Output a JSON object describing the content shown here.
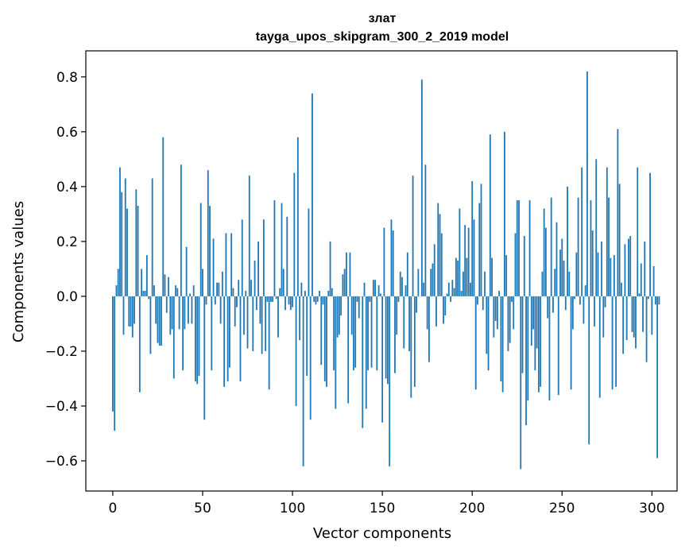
{
  "chart_data": {
    "type": "bar",
    "title": "злат",
    "subtitle": "tayga_upos_skipgram_300_2_2019 model",
    "xlabel": "Vector components",
    "ylabel": "Components values",
    "xlim": [
      -15,
      314
    ],
    "ylim": [
      -0.71,
      0.895
    ],
    "xticks": [
      0,
      50,
      100,
      150,
      200,
      250,
      300
    ],
    "xtick_labels": [
      "0",
      "50",
      "100",
      "150",
      "200",
      "250",
      "300"
    ],
    "yticks": [
      -0.6,
      -0.4,
      -0.2,
      0.0,
      0.2,
      0.4,
      0.6,
      0.8
    ],
    "ytick_labels": [
      "−0.6",
      "−0.4",
      "−0.2",
      "0.0",
      "0.2",
      "0.4",
      "0.6",
      "0.8"
    ],
    "grid": false,
    "bar_color": "#1f77b4",
    "x_start": 0,
    "values": [
      -0.42,
      -0.49,
      0.04,
      0.1,
      0.47,
      0.38,
      -0.14,
      0.43,
      0.32,
      -0.11,
      -0.11,
      -0.15,
      -0.1,
      0.39,
      0.33,
      -0.35,
      0.1,
      0.02,
      0.02,
      0.15,
      -0.01,
      -0.21,
      0.43,
      0.04,
      -0.1,
      -0.17,
      -0.18,
      -0.18,
      0.58,
      0.08,
      -0.06,
      0.07,
      -0.14,
      -0.12,
      -0.3,
      0.04,
      0.03,
      -0.12,
      0.48,
      -0.27,
      -0.12,
      0.18,
      -0.1,
      0.01,
      -0.1,
      0.04,
      -0.31,
      -0.32,
      -0.29,
      0.34,
      0.1,
      -0.45,
      -0.03,
      0.46,
      0.33,
      -0.27,
      0.21,
      -0.03,
      0.05,
      0.05,
      -0.1,
      0.09,
      -0.33,
      0.23,
      -0.31,
      -0.26,
      0.23,
      0.03,
      -0.11,
      -0.04,
      0.06,
      -0.31,
      0.28,
      -0.14,
      0.02,
      -0.19,
      0.44,
      0.06,
      -0.2,
      0.13,
      -0.05,
      0.2,
      -0.1,
      -0.21,
      0.28,
      -0.2,
      -0.02,
      -0.34,
      -0.02,
      -0.02,
      0.35,
      -0.01,
      -0.15,
      0.03,
      0.34,
      0.1,
      -0.05,
      0.29,
      -0.03,
      -0.05,
      -0.04,
      0.45,
      -0.4,
      0.58,
      -0.16,
      0.05,
      -0.62,
      0.02,
      -0.29,
      0.32,
      -0.45,
      0.74,
      -0.02,
      -0.03,
      -0.02,
      0.02,
      -0.25,
      -0.03,
      -0.31,
      -0.33,
      0.02,
      0.2,
      0.03,
      -0.27,
      -0.41,
      -0.15,
      -0.14,
      -0.07,
      0.08,
      0.1,
      0.16,
      -0.39,
      0.16,
      -0.14,
      -0.27,
      -0.26,
      -0.02,
      -0.08,
      0.0,
      -0.48,
      0.05,
      -0.41,
      -0.27,
      -0.02,
      -0.26,
      0.06,
      0.06,
      -0.27,
      0.04,
      0.01,
      -0.46,
      0.25,
      -0.3,
      -0.32,
      -0.62,
      0.28,
      0.24,
      -0.28,
      -0.14,
      -0.02,
      0.09,
      0.07,
      -0.19,
      0.04,
      0.16,
      -0.2,
      -0.37,
      0.44,
      -0.33,
      -0.06,
      0.1,
      0.0,
      0.79,
      0.05,
      0.48,
      -0.12,
      -0.24,
      0.1,
      0.12,
      0.19,
      -0.11,
      0.34,
      0.3,
      0.23,
      -0.1,
      -0.07,
      0.01,
      0.05,
      -0.02,
      0.06,
      0.03,
      0.14,
      0.13,
      0.32,
      0.02,
      0.09,
      0.26,
      0.14,
      0.25,
      0.05,
      0.42,
      0.28,
      -0.34,
      -0.03,
      0.34,
      0.41,
      -0.05,
      0.09,
      -0.21,
      -0.27,
      0.59,
      0.14,
      -0.15,
      -0.09,
      -0.12,
      0.02,
      -0.31,
      -0.35,
      0.6,
      0.15,
      -0.2,
      -0.17,
      -0.02,
      -0.12,
      0.23,
      0.35,
      0.35,
      -0.63,
      -0.28,
      0.22,
      -0.47,
      -0.38,
      0.35,
      -0.18,
      -0.12,
      -0.27,
      -0.19,
      -0.35,
      -0.33,
      0.09,
      0.32,
      0.25,
      -0.08,
      -0.38,
      0.36,
      -0.06,
      0.1,
      0.27,
      -0.36,
      0.17,
      0.21,
      0.13,
      -0.05,
      0.4,
      0.09,
      -0.34,
      -0.12,
      -0.01,
      0.16,
      0.36,
      -0.03,
      0.47,
      -0.1,
      0.04,
      0.82,
      -0.54,
      0.35,
      0.24,
      -0.11,
      0.5,
      0.16,
      -0.37,
      0.2,
      -0.15,
      -0.04,
      0.47,
      0.36,
      0.14,
      -0.34,
      0.15,
      -0.33,
      0.61,
      0.41,
      0.05,
      -0.21,
      0.19,
      -0.16,
      0.21,
      0.22,
      -0.13,
      -0.15,
      -0.19,
      0.47,
      0.01,
      0.12,
      -0.13,
      0.2,
      -0.24,
      -0.01,
      0.45,
      -0.14,
      0.11,
      -0.03,
      -0.59,
      -0.03
    ]
  }
}
